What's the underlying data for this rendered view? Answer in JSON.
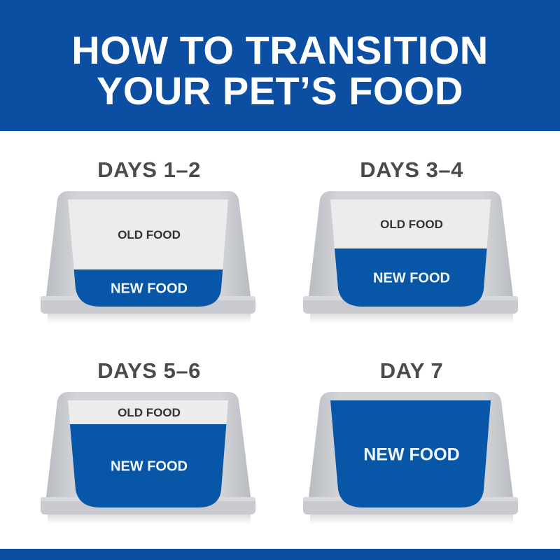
{
  "header": {
    "title_line1": "HOW TO TRANSITION",
    "title_line2": "YOUR PET’S FOOD"
  },
  "colors": {
    "brand_blue": "#0b4ea2",
    "food_blue": "#0756a8",
    "bowl_gray": "#c9cbcf",
    "old_food": "#ececec"
  },
  "steps": [
    {
      "day_label": "DAYS 1–2",
      "old_label": "OLD FOOD",
      "new_label": "NEW FOOD",
      "new_food_fraction": 0.25
    },
    {
      "day_label": "DAYS 3–4",
      "old_label": "OLD FOOD",
      "new_label": "NEW FOOD",
      "new_food_fraction": 0.5
    },
    {
      "day_label": "DAYS 5–6",
      "old_label": "OLD FOOD",
      "new_label": "NEW FOOD",
      "new_food_fraction": 0.75
    },
    {
      "day_label": "DAY 7",
      "old_label": "",
      "new_label": "NEW FOOD",
      "new_food_fraction": 1.0
    }
  ]
}
